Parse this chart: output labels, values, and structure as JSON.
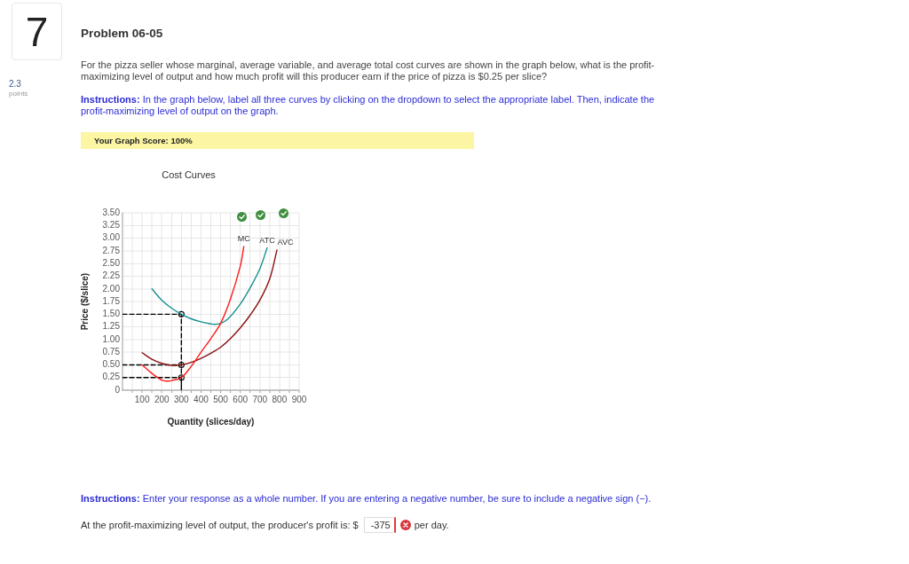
{
  "chart_data": {
    "type": "line",
    "title": "Cost Curves",
    "xlabel": "Quantity (slices/day)",
    "ylabel": "Price ($/slice)",
    "xlim": [
      0,
      900
    ],
    "xticks": [
      {
        "value": 50,
        "label": null
      },
      100,
      {
        "value": 150,
        "label": null
      },
      200,
      {
        "value": 250,
        "label": null
      },
      300,
      {
        "value": 350,
        "label": null
      },
      400,
      {
        "value": 450,
        "label": null
      },
      500,
      {
        "value": 550,
        "label": null
      },
      600,
      {
        "value": 650,
        "label": null
      },
      700,
      {
        "value": 750,
        "label": null
      },
      800,
      {
        "value": 850,
        "label": null
      },
      900
    ],
    "ylim": [
      0,
      3.5
    ],
    "yticks": [
      0,
      0.25,
      {
        "value": 0.5,
        "label": "0.50"
      },
      0.75,
      {
        "value": 1,
        "label": "1.00"
      },
      1.25,
      {
        "value": 1.5,
        "label": "1.50"
      },
      1.75,
      {
        "value": 2,
        "label": "2.00"
      },
      2.25,
      {
        "value": 2.5,
        "label": "2.50"
      },
      2.75,
      {
        "value": 3,
        "label": "3.00"
      },
      3.25,
      {
        "value": 3.5,
        "label": "3.50"
      }
    ],
    "grid": true,
    "marker": "none",
    "series": [
      {
        "type": "line",
        "name": "MC",
        "color": "#ff1a1a",
        "x": [
          100,
          150,
          200,
          225,
          250,
          300,
          350,
          400,
          450,
          500,
          550,
          600,
          618
        ],
        "values": [
          0.5,
          0.33,
          0.2,
          0.18,
          0.19,
          0.25,
          0.47,
          0.75,
          1.02,
          1.32,
          1.8,
          2.45,
          2.84
        ]
      },
      {
        "type": "line",
        "name": "ATC",
        "color": "#178f8f",
        "x": [
          150,
          200,
          250,
          300,
          350,
          400,
          450,
          470,
          500,
          538,
          600,
          650,
          700,
          737
        ],
        "values": [
          2.0,
          1.78,
          1.62,
          1.5,
          1.41,
          1.35,
          1.31,
          1.3,
          1.32,
          1.41,
          1.7,
          2.02,
          2.4,
          2.81
        ]
      },
      {
        "type": "line",
        "name": "AVC",
        "color": "#8b1010",
        "x": [
          100,
          150,
          200,
          250,
          300,
          350,
          400,
          450,
          500,
          550,
          600,
          650,
          700,
          750,
          787
        ],
        "values": [
          0.74,
          0.61,
          0.53,
          0.49,
          0.5,
          0.55,
          0.63,
          0.73,
          0.85,
          1.02,
          1.23,
          1.48,
          1.78,
          2.2,
          2.77
        ]
      },
      {
        "type": "line",
        "color": "#000000",
        "line_style": "dashed",
        "x": [
          0,
          300,
          300
        ],
        "values": [
          1.5,
          1.5,
          0.25
        ]
      },
      {
        "type": "line",
        "color": "#000000",
        "line_style": "dashed",
        "x": [
          0,
          300
        ],
        "values": [
          0.5,
          0.5
        ]
      },
      {
        "type": "line",
        "color": "#000000",
        "line_style": "dashed",
        "x": [
          0,
          300
        ],
        "values": [
          0.25,
          0.25
        ]
      },
      {
        "type": "line",
        "color": "#000000",
        "line_style": "solid",
        "x": [
          300,
          300
        ],
        "values": [
          0.25,
          0
        ]
      },
      {
        "type": "scatter",
        "color": "#000000",
        "marker": "circle",
        "x": [
          300,
          300,
          300
        ],
        "values": [
          1.5,
          0.5,
          0.25
        ]
      }
    ],
    "annotations": [
      "7",
      "2.3",
      "points",
      "Problem 06-05",
      "For the pizza seller whose marginal, average variable, and average total cost curves are shown in the graph below, what is the profit-maximizing level of output and how much profit will this producer earn if the price of pizza is $0.25 per slice?",
      "Instructions:",
      "In the graph below, label all three curves by clicking on the dropdown to select the appropriate label. Then, indicate the profit-maximizing level of output on the graph.",
      "Your Graph Score: 100%",
      "Instructions:",
      "Enter your response as a whole number. If you are entering a negative number, be sure to include a negative sign (−).",
      "At the profit-maximizing level of output, the producer's profit is: $",
      "-375",
      "per day."
    ]
  }
}
